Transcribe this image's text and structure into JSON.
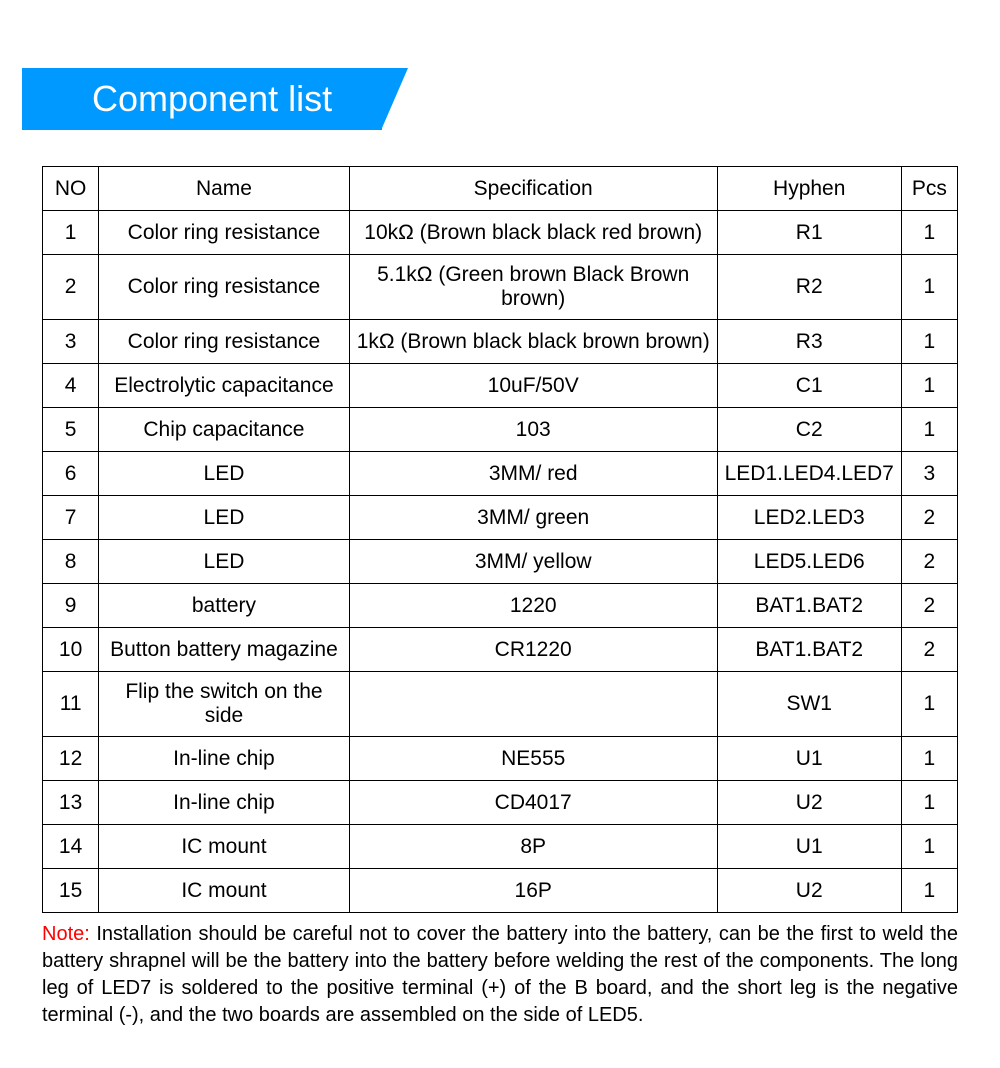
{
  "title": "Component list",
  "columns": [
    "NO",
    "Name",
    "Specification",
    "Hyphen",
    "Pcs"
  ],
  "rows": [
    [
      "1",
      "Color ring resistance",
      "10kΩ (Brown black black red brown)",
      "R1",
      "1"
    ],
    [
      "2",
      "Color ring resistance",
      "5.1kΩ (Green brown Black Brown brown)",
      "R2",
      "1"
    ],
    [
      "3",
      "Color ring resistance",
      "1kΩ (Brown black black brown brown)",
      "R3",
      "1"
    ],
    [
      "4",
      "Electrolytic capacitance",
      "10uF/50V",
      "C1",
      "1"
    ],
    [
      "5",
      "Chip capacitance",
      "103",
      "C2",
      "1"
    ],
    [
      "6",
      "LED",
      "3MM/ red",
      "LED1.LED4.LED7",
      "3"
    ],
    [
      "7",
      "LED",
      "3MM/ green",
      "LED2.LED3",
      "2"
    ],
    [
      "8",
      "LED",
      "3MM/ yellow",
      "LED5.LED6",
      "2"
    ],
    [
      "9",
      "battery",
      "1220",
      "BAT1.BAT2",
      "2"
    ],
    [
      "10",
      "Button battery magazine",
      "CR1220",
      "BAT1.BAT2",
      "2"
    ],
    [
      "11",
      "Flip the switch on the side",
      "",
      "SW1",
      "1"
    ],
    [
      "12",
      "In-line chip",
      "NE555",
      "U1",
      "1"
    ],
    [
      "13",
      "In-line chip",
      "CD4017",
      "U2",
      "1"
    ],
    [
      "14",
      "IC mount",
      "8P",
      "U1",
      "1"
    ],
    [
      "15",
      "IC mount",
      "16P",
      "U2",
      "1"
    ]
  ],
  "note_label": "Note:",
  "note_text": " Installation should be careful not to cover the battery into the battery, can be the first to weld the battery shrapnel will be the battery into the battery before welding the rest of the components. The long leg of LED7 is soldered to the positive terminal (+) of the B board, and the short leg is the negative terminal (-), and the two boards are assembled on the side of LED5.",
  "colors": {
    "banner_bg": "#0099ff",
    "banner_text": "#ffffff",
    "border": "#000000",
    "note_label": "#ff0000",
    "background": "#ffffff"
  },
  "fontsizes": {
    "title": 36,
    "cell": 21,
    "note": 20
  }
}
